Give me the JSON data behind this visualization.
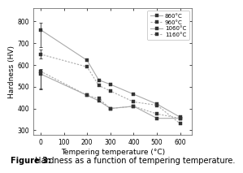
{
  "xlabel": "Tempering temperature (°C)",
  "ylabel": "Hardness (HV)",
  "caption": "Figure 3: Hardness as a function of tempering temperature.",
  "xlim": [
    -30,
    650
  ],
  "ylim": [
    280,
    860
  ],
  "yticks": [
    300,
    400,
    500,
    600,
    700,
    800
  ],
  "xticks": [
    0,
    100,
    200,
    300,
    400,
    500,
    600
  ],
  "series": [
    {
      "label": "860°C",
      "x": [
        0,
        200,
        250,
        300,
        400,
        500,
        600
      ],
      "y": [
        760,
        620,
        530,
        510,
        465,
        420,
        360
      ],
      "error_low": 80,
      "error_high": 30,
      "linestyle": 0
    },
    {
      "label": "960°C",
      "x": [
        0,
        200,
        250,
        300,
        400,
        500,
        600
      ],
      "y": [
        648,
        590,
        505,
        480,
        430,
        415,
        330
      ],
      "error_low": 20,
      "error_high": 20,
      "linestyle": 1
    },
    {
      "label": "1060°C",
      "x": [
        0,
        200,
        250,
        300,
        400,
        500,
        600
      ],
      "y": [
        558,
        460,
        435,
        400,
        410,
        355,
        355
      ],
      "error_low": 70,
      "error_high": 10,
      "linestyle": 0
    },
    {
      "label": "1160°C",
      "x": [
        0,
        200,
        250,
        300,
        400,
        500,
        600
      ],
      "y": [
        570,
        460,
        445,
        400,
        410,
        375,
        355
      ],
      "error_low": 80,
      "error_high": 10,
      "linestyle": 1
    }
  ],
  "line_colors": [
    "#aaaaaa",
    "#aaaaaa",
    "#aaaaaa",
    "#aaaaaa"
  ],
  "marker_color": "#333333",
  "marker": "s",
  "markersize": 3.0,
  "linewidth": 0.8,
  "background_color": "#ffffff",
  "legend_fontsize": 5.0,
  "axis_label_fontsize": 6.5,
  "tick_fontsize": 5.5,
  "caption_fontsize": 7.0
}
